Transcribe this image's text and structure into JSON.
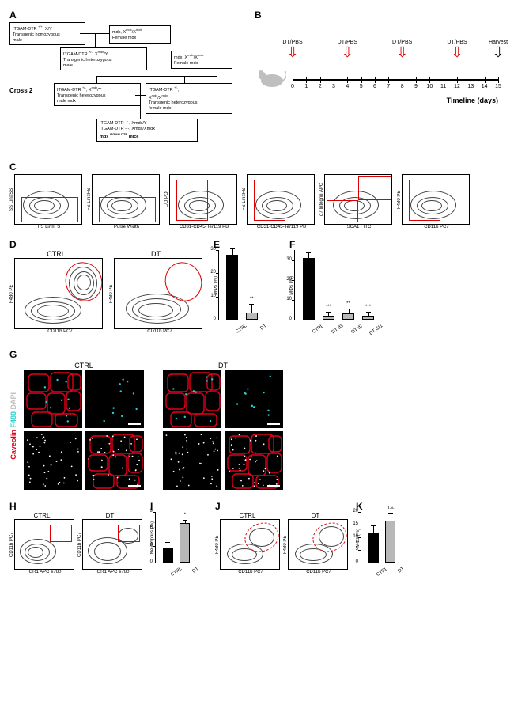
{
  "panelA": {
    "label": "A",
    "cross_label": "Cross 2",
    "boxes": {
      "p1_m": [
        "ITGAM-DTR ",
        "+/+",
        ", X/Y",
        "Transgenic homozygous male"
      ],
      "p1_f": [
        "mdx, X",
        "mdx",
        "/X",
        "mdx",
        "Female mdx"
      ],
      "f1": [
        "ITGAM-DTR ",
        "+/-",
        ", X",
        "mdx",
        "/Y",
        "Transgenic heterozygous male"
      ],
      "p2_f": [
        "mdx, X",
        "mdx",
        "/X",
        "mdx",
        "Female mdx"
      ],
      "c2_m": [
        "ITGAM-DTR ",
        "+/-",
        ", X",
        "mdx",
        "/Y",
        "Transgenic heterozygous male mdx"
      ],
      "c2_f": [
        "ITGAM-DTR ",
        "+/-",
        ",",
        "X",
        "mdx",
        "/X",
        "mdx",
        "Transgenic heterozygous female mdx"
      ],
      "final_lines": [
        "ITGAM-DTR -/-, Xmdx/Y",
        "ITGAM-DTR -/-, Xmdx/Xmdx",
        "mdx ITGAM-DTR mice"
      ]
    }
  },
  "panelB": {
    "label": "B",
    "injections": [
      {
        "day": 0,
        "label": "DT/PBS",
        "color": "#d80000"
      },
      {
        "day": 4,
        "label": "DT/PBS",
        "color": "#d80000"
      },
      {
        "day": 8,
        "label": "DT/PBS",
        "color": "#d80000"
      },
      {
        "day": 12,
        "label": "DT/PBS",
        "color": "#d80000"
      },
      {
        "day": 15,
        "label": "Harvest",
        "color": "#000000"
      }
    ],
    "days": [
      0,
      1,
      2,
      3,
      4,
      5,
      6,
      7,
      8,
      9,
      10,
      11,
      12,
      13,
      14,
      15
    ],
    "caption": "Timeline (days)"
  },
  "panelC": {
    "label": "C",
    "plots": [
      {
        "y": "SS Lin≡SS",
        "x": "FS Lin≡FS"
      },
      {
        "y": "FS Lin≡FS",
        "x": "Pulse Width"
      },
      {
        "y": "L/D PO",
        "x": "CD31-CD45-Ter119 PB"
      },
      {
        "y": "FS Lin≡FS",
        "x": "CD31-CD45-Ter119 PB"
      },
      {
        "y": "α7 Integrin APC",
        "x": "SCA1 FITC"
      },
      {
        "y": "F480 PE",
        "x": "CD11b PC7"
      }
    ]
  },
  "panelD": {
    "label": "D",
    "titles": [
      "CTRL",
      "DT"
    ],
    "y": "F480 PE",
    "x": "CD11b PC7"
  },
  "panelE": {
    "label": "E",
    "ylabel": "MΦs (%)",
    "ylim": [
      0,
      30
    ],
    "ytick_step": 10,
    "categories": [
      "CTRL",
      "DT"
    ],
    "values": [
      28,
      3
    ],
    "errors": [
      2.5,
      3.5
    ],
    "colors": [
      "#000000",
      "#b8b8b8"
    ],
    "sig": [
      {
        "over": 1,
        "text": "**"
      }
    ]
  },
  "panelF": {
    "label": "F",
    "ylabel": "MΦs (%)",
    "ylim": [
      0,
      35
    ],
    "ytick_step": 10,
    "categories": [
      "CTRL",
      "DT d3",
      "DT d7",
      "DT d11"
    ],
    "values": [
      31,
      2,
      3,
      2
    ],
    "errors": [
      2.5,
      1.5,
      2.0,
      1.5
    ],
    "colors": [
      "#000000",
      "#b8b8b8",
      "#b8b8b8",
      "#b8b8b8"
    ],
    "sig": [
      {
        "over": 1,
        "text": "***"
      },
      {
        "over": 2,
        "text": "**"
      },
      {
        "over": 3,
        "text": "***"
      }
    ]
  },
  "panelG": {
    "label": "G",
    "titles": [
      "CTRL",
      "DT"
    ],
    "ylabel_parts": [
      {
        "text": "Caveolin",
        "color": "#e2001a"
      },
      {
        "text": "/",
        "color": "#ffffff"
      },
      {
        "text": "F480",
        "color": "#27d0cf"
      },
      {
        "text": "/",
        "color": "#ffffff"
      },
      {
        "text": "DAPI",
        "color": "#bfbfbf"
      }
    ]
  },
  "panelH": {
    "label": "H",
    "titles": [
      "CTRL",
      "DT"
    ],
    "y": "CD11b PC7",
    "x": "GR1 APC e780"
  },
  "panelI": {
    "label": "I",
    "ylabel": "Neutrophils (%)",
    "ylim": [
      0,
      9
    ],
    "ytick_step": 3,
    "categories": [
      "CTRL",
      "DT"
    ],
    "values": [
      2.6,
      7.0
    ],
    "errors": [
      0.9,
      0.5
    ],
    "colors": [
      "#000000",
      "#b8b8b8"
    ],
    "sig": [
      {
        "over": 1,
        "text": "*"
      }
    ]
  },
  "panelJ": {
    "label": "J",
    "titles": [
      "CTRL",
      "DT"
    ],
    "y": "F480 PE",
    "x": "CD11b PC7"
  },
  "panelK": {
    "label": "K",
    "ylabel": "MΦs (%)",
    "ylim": [
      0,
      20
    ],
    "ytick_step": 5,
    "categories": [
      "CTRL",
      "DT"
    ],
    "values": [
      11.5,
      16.5
    ],
    "errors": [
      3.0,
      3.0
    ],
    "colors": [
      "#000000",
      "#b8b8b8"
    ],
    "sig": [
      {
        "over": 1,
        "text": "n.s."
      }
    ]
  }
}
